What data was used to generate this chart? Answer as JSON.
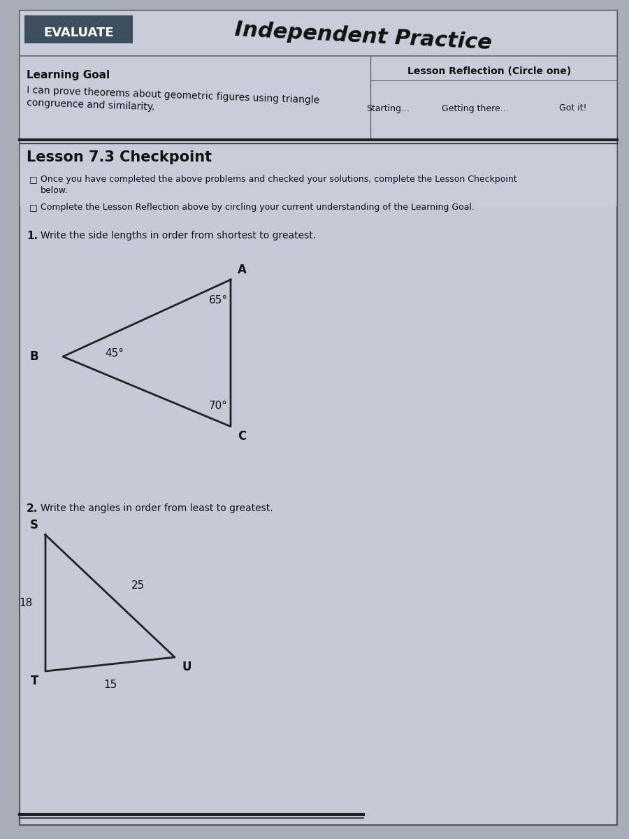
{
  "bg_color": "#a8adb8",
  "page_color": "#c5cad6",
  "page_inner_color": "#cdd2de",
  "evaluate_bg": "#3d4f5e",
  "evaluate_text": "EVALUATE",
  "title": "Independent Practice",
  "learning_goal_label": "Learning Goal",
  "learning_goal_text": "I can prove theorems about geometric figures using triangle\ncongruence and similarity.",
  "lesson_reflection_label": "Lesson Reflection (Circle one)",
  "reflection_options": [
    "Starting...",
    "Getting there...",
    "Got it!"
  ],
  "checkpoint_title": "Lesson 7.3 Checkpoint",
  "bullet1_line1": "Once you have completed the above problems and checked your solutions, complete the Lesson Checkpoint",
  "bullet1_line2": "below.",
  "bullet2": "Complete the Lesson Reflection above by circling your current understanding of the Learning Goal.",
  "q1_label": "1.",
  "q1_text": "Write the side lengths in order from shortest to greatest.",
  "q2_label": "2.",
  "q2_text": "Write the angles in order from least to greatest.",
  "tri1_angle_A": "65°",
  "tri1_angle_B": "45°",
  "tri1_angle_C": "70°",
  "tri1_label_A": "A",
  "tri1_label_B": "B",
  "tri1_label_C": "C",
  "tri2_label_S": "S",
  "tri2_label_T": "T",
  "tri2_label_U": "U",
  "tri2_side_ST": "18",
  "tri2_side_SU": "25",
  "tri2_side_TU": "15",
  "text_color": "#111111",
  "dark_line_color": "#222222",
  "divider_color": "#666666"
}
